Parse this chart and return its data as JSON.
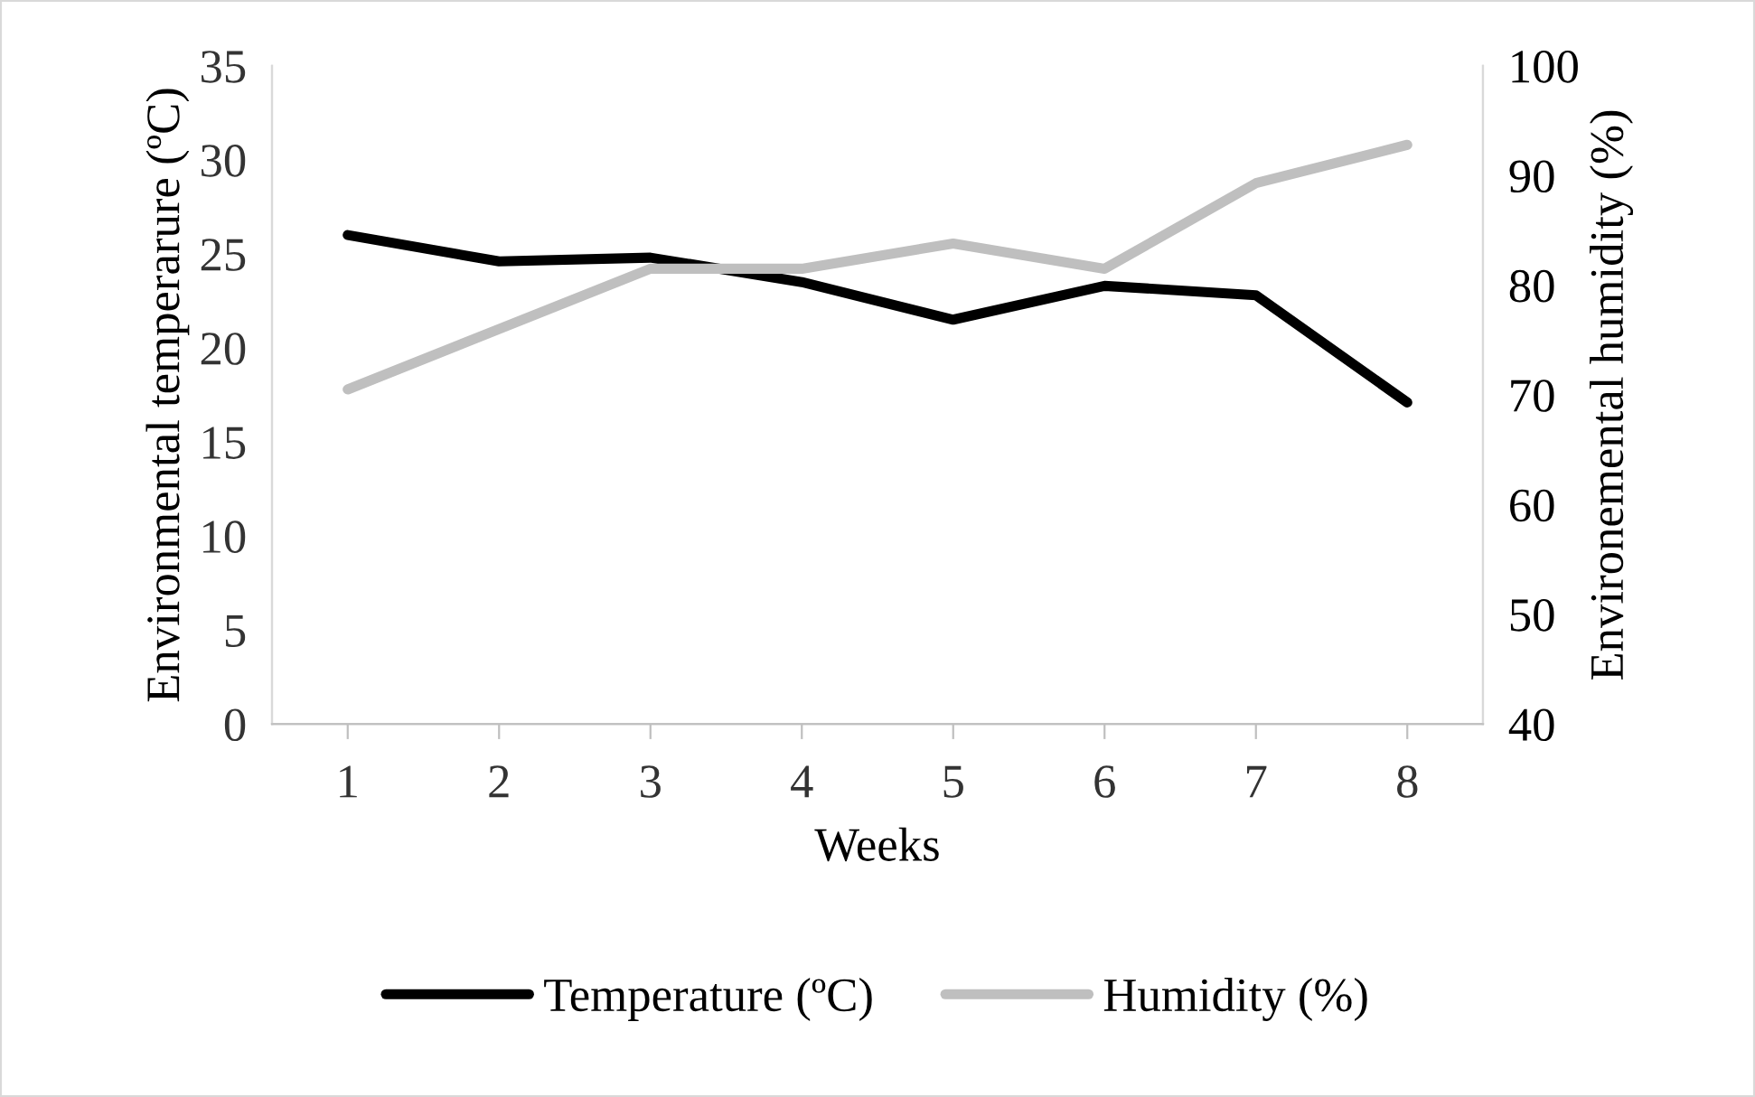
{
  "chart_data": {
    "type": "line",
    "xlabel": "Weeks",
    "ylabel": "Environmental temperarure (ºC)",
    "y2label": "Environemental humidity (%)",
    "categories": [
      "1",
      "2",
      "3",
      "4",
      "5",
      "6",
      "7",
      "8"
    ],
    "series": [
      {
        "name": "Temperature (ºC)",
        "color": "#000000",
        "values": [
          26.0,
          24.6,
          24.8,
          23.5,
          21.5,
          23.3,
          22.8,
          17.1
        ]
      },
      {
        "name": "Humidity (%)",
        "color": "#bfbfbf",
        "axis": "y2",
        "values": [
          70.5,
          76.0,
          81.5,
          81.5,
          83.8,
          81.5,
          89.3,
          92.8
        ]
      }
    ],
    "ylim": [
      0,
      35
    ],
    "yticks": [
      0,
      5,
      10,
      15,
      20,
      25,
      30,
      35
    ],
    "y2lim": [
      40,
      100
    ],
    "y2ticks": [
      40,
      50,
      60,
      70,
      80,
      90,
      100
    ],
    "grid": false,
    "legend": "bottom",
    "marker": "none",
    "line_style": "solid"
  }
}
